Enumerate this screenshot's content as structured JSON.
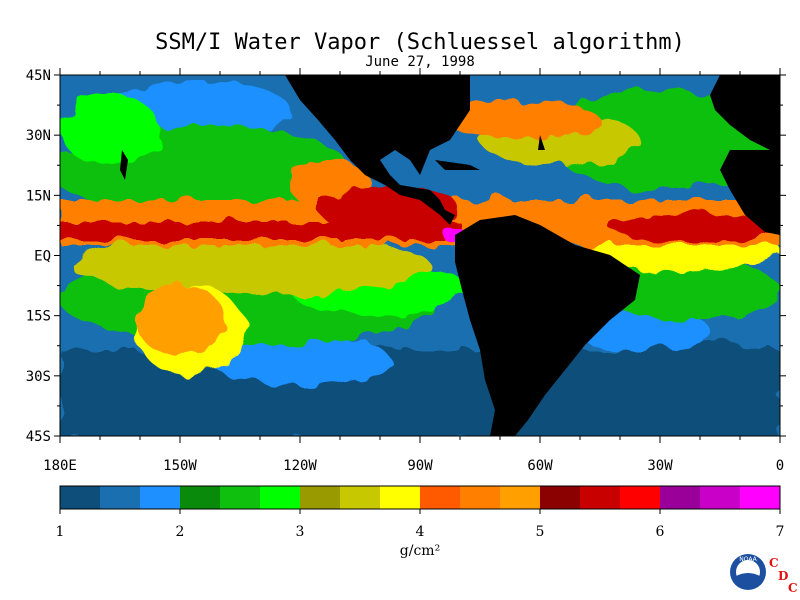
{
  "header": {
    "title": "SSM/I Water Vapor (Schluessel algorithm)",
    "date": "June 27, 1998"
  },
  "map": {
    "lat_labels": [
      "45N",
      "30N",
      "15N",
      "EQ",
      "15S",
      "30S",
      "45S"
    ],
    "lon_labels": [
      "180E",
      "150W",
      "120W",
      "90W",
      "60W",
      "30W",
      "0"
    ],
    "ocean_color": "#1f7fbf",
    "land_color": "#000000"
  },
  "colorbar": {
    "colors": [
      "#0d4f7a",
      "#1a6fb0",
      "#1e90ff",
      "#0a8a0a",
      "#0fc00f",
      "#00ff00",
      "#999900",
      "#c8c800",
      "#ffff00",
      "#ff5a00",
      "#ff7f00",
      "#ffa000",
      "#8b0000",
      "#c80000",
      "#ff0000",
      "#9a0099",
      "#c800c8",
      "#ff00ff"
    ],
    "tick_labels": [
      "1",
      "2",
      "3",
      "4",
      "5",
      "6",
      "7"
    ],
    "unit_label": "g/cm²"
  },
  "logo": {
    "agency_text": "NOAA",
    "cdc_letters": [
      "C",
      "D",
      "C"
    ],
    "accent_color": "#e01010"
  }
}
